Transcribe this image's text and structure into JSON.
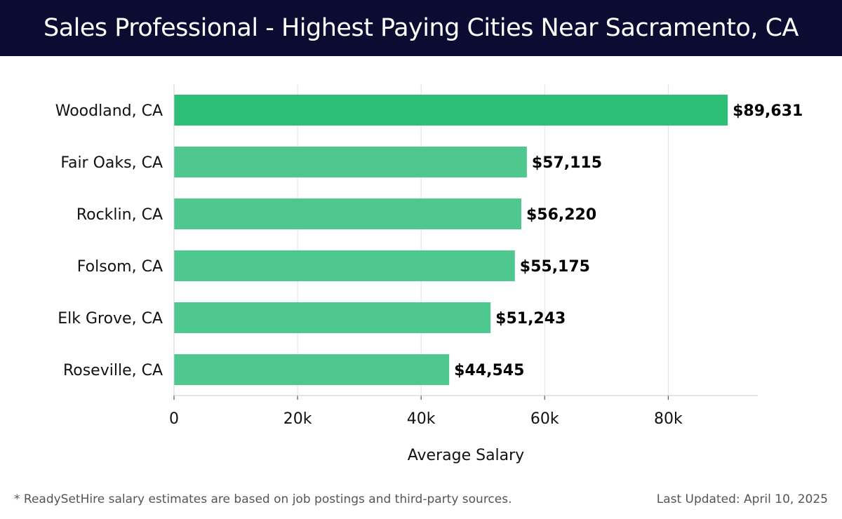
{
  "header": {
    "title": "Sales Professional - Highest Paying Cities Near Sacramento, CA"
  },
  "chart_data": {
    "type": "bar",
    "orientation": "horizontal",
    "title": "Sales Professional - Highest Paying Cities Near Sacramento, CA",
    "xlabel": "Average Salary",
    "ylabel": "",
    "categories": [
      "Woodland, CA",
      "Fair Oaks, CA",
      "Rocklin, CA",
      "Folsom, CA",
      "Elk Grove, CA",
      "Roseville, CA"
    ],
    "values": [
      89631,
      57115,
      56220,
      55175,
      51243,
      44545
    ],
    "value_labels": [
      "$89,631",
      "$57,115",
      "$56,220",
      "$55,175",
      "$51,243",
      "$44,545"
    ],
    "xlim": [
      0,
      94500
    ],
    "xticks": [
      0,
      20000,
      40000,
      60000,
      80000
    ],
    "xtick_labels": [
      "0",
      "20k",
      "40k",
      "60k",
      "80k"
    ],
    "grid": "vertical",
    "colors": {
      "top_bar": "#2dbe78",
      "bar": "#4ec88e",
      "gridline": "#e0e0e0",
      "axis": "#cccccc"
    }
  },
  "footer": {
    "footnote": "* ReadySetHire salary estimates are based on job postings and third-party sources.",
    "updated": "Last Updated: April 10, 2025"
  }
}
